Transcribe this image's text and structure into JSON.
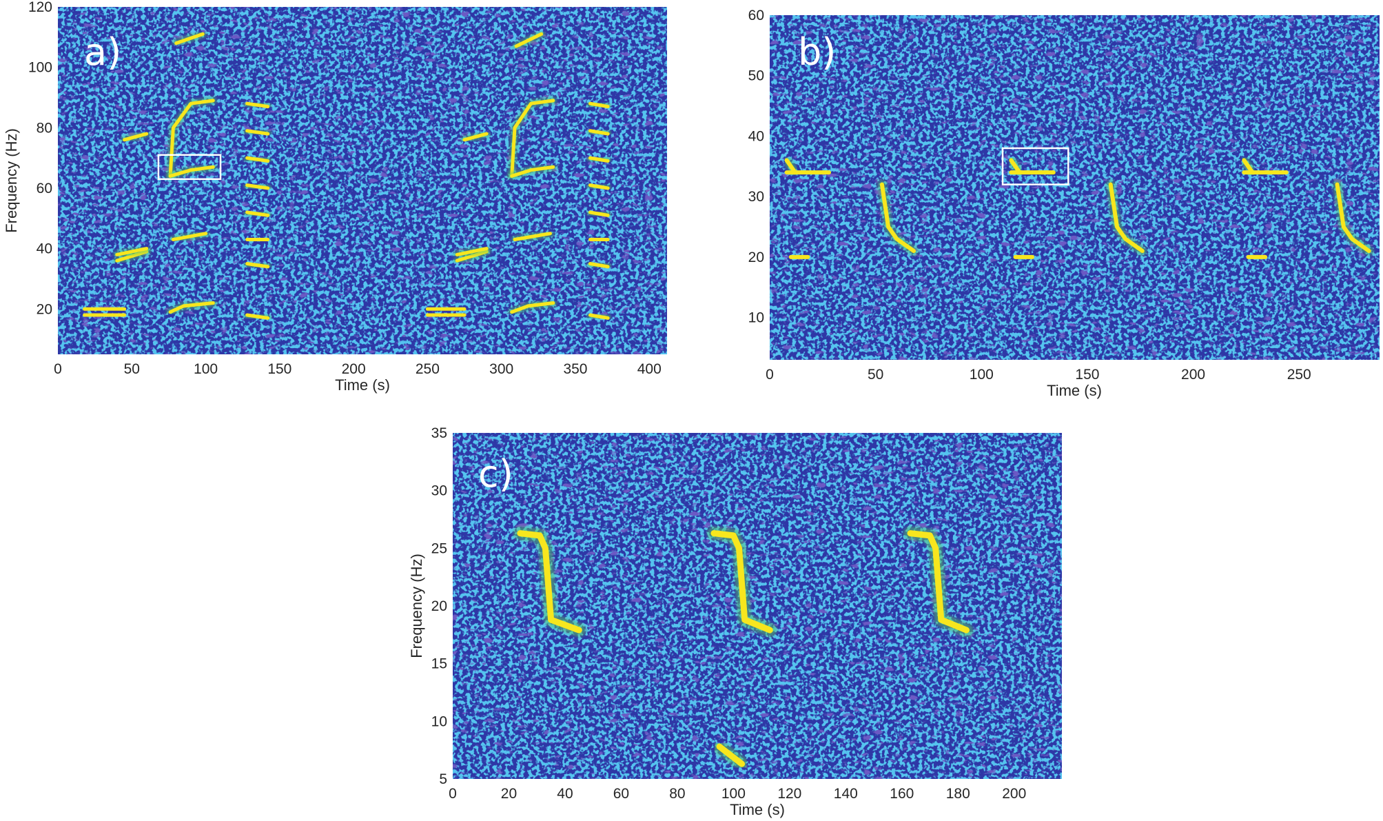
{
  "colors": {
    "background": "#2e37a6",
    "noise_light": "#1fa0d8",
    "noise_mid": "#2f6fd6",
    "noise_dark": "#241a8f",
    "call": "#f7e61e",
    "call_edge": "#56c667",
    "box": "#ffffff"
  },
  "chart_data": [
    {
      "type": "heatmap",
      "panel": "a)",
      "xlabel": "Time (s)",
      "ylabel": "Frequency (Hz)",
      "xlim": [
        0,
        412
      ],
      "ylim": [
        5,
        120
      ],
      "xticks": [
        0,
        50,
        100,
        150,
        200,
        250,
        300,
        350,
        400
      ],
      "yticks": [
        20,
        40,
        60,
        80,
        100,
        120
      ],
      "legend": "none",
      "highlight_box": {
        "x": [
          68,
          110
        ],
        "y": [
          63,
          71
        ]
      },
      "calls": [
        {
          "t": [
            18,
            45
          ],
          "f": [
            18,
            18
          ]
        },
        {
          "t": [
            18,
            45
          ],
          "f": [
            20,
            20
          ]
        },
        {
          "t": [
            40,
            60
          ],
          "f": [
            36,
            39
          ]
        },
        {
          "t": [
            40,
            60
          ],
          "f": [
            38,
            40
          ]
        },
        {
          "t": [
            45,
            60
          ],
          "f": [
            76,
            78
          ]
        },
        {
          "t": [
            76,
            78,
            90,
            105
          ],
          "f": [
            64,
            80,
            88,
            89
          ]
        },
        {
          "t": [
            76,
            90,
            105
          ],
          "f": [
            64,
            66,
            67
          ]
        },
        {
          "t": [
            78,
            100
          ],
          "f": [
            43,
            45
          ]
        },
        {
          "t": [
            76,
            85,
            105
          ],
          "f": [
            19,
            21,
            22
          ]
        },
        {
          "t": [
            80,
            98
          ],
          "f": [
            108,
            111
          ]
        },
        {
          "t": [
            128,
            142
          ],
          "f": [
            88,
            87
          ]
        },
        {
          "t": [
            128,
            142
          ],
          "f": [
            79,
            78
          ]
        },
        {
          "t": [
            128,
            142
          ],
          "f": [
            70,
            69
          ]
        },
        {
          "t": [
            128,
            142
          ],
          "f": [
            61,
            60
          ]
        },
        {
          "t": [
            128,
            142
          ],
          "f": [
            52,
            51
          ]
        },
        {
          "t": [
            128,
            142
          ],
          "f": [
            43,
            43
          ]
        },
        {
          "t": [
            128,
            142
          ],
          "f": [
            35,
            34
          ]
        },
        {
          "t": [
            128,
            142
          ],
          "f": [
            18,
            17
          ]
        },
        {
          "t": [
            250,
            275
          ],
          "f": [
            18,
            18
          ]
        },
        {
          "t": [
            250,
            275
          ],
          "f": [
            20,
            20
          ]
        },
        {
          "t": [
            270,
            290
          ],
          "f": [
            36,
            39
          ]
        },
        {
          "t": [
            270,
            290
          ],
          "f": [
            38,
            40
          ]
        },
        {
          "t": [
            275,
            290
          ],
          "f": [
            76,
            78
          ]
        },
        {
          "t": [
            307,
            309,
            320,
            335
          ],
          "f": [
            64,
            80,
            88,
            89
          ]
        },
        {
          "t": [
            307,
            320,
            335
          ],
          "f": [
            64,
            66,
            67
          ]
        },
        {
          "t": [
            309,
            333
          ],
          "f": [
            43,
            45
          ]
        },
        {
          "t": [
            307,
            318,
            335
          ],
          "f": [
            19,
            21,
            22
          ]
        },
        {
          "t": [
            310,
            327
          ],
          "f": [
            107,
            111
          ]
        },
        {
          "t": [
            360,
            372
          ],
          "f": [
            88,
            87
          ]
        },
        {
          "t": [
            360,
            372
          ],
          "f": [
            79,
            78
          ]
        },
        {
          "t": [
            360,
            372
          ],
          "f": [
            70,
            69
          ]
        },
        {
          "t": [
            360,
            372
          ],
          "f": [
            61,
            60
          ]
        },
        {
          "t": [
            360,
            372
          ],
          "f": [
            52,
            51
          ]
        },
        {
          "t": [
            360,
            372
          ],
          "f": [
            43,
            43
          ]
        },
        {
          "t": [
            360,
            372
          ],
          "f": [
            35,
            34
          ]
        },
        {
          "t": [
            360,
            372
          ],
          "f": [
            18,
            17
          ]
        }
      ]
    },
    {
      "type": "heatmap",
      "panel": "b)",
      "xlabel": "Time (s)",
      "ylabel": "",
      "xlim": [
        0,
        288
      ],
      "ylim": [
        3,
        60
      ],
      "xticks": [
        0,
        50,
        100,
        150,
        200,
        250
      ],
      "yticks": [
        10,
        20,
        30,
        40,
        50,
        60
      ],
      "legend": "none",
      "highlight_box": {
        "x": [
          110,
          141
        ],
        "y": [
          32,
          38
        ]
      },
      "calls": [
        {
          "t": [
            8,
            12
          ],
          "f": [
            36,
            34
          ]
        },
        {
          "t": [
            8,
            18,
            28
          ],
          "f": [
            34,
            34,
            34
          ]
        },
        {
          "t": [
            10,
            18
          ],
          "f": [
            20,
            20
          ]
        },
        {
          "t": [
            53,
            56,
            60,
            68
          ],
          "f": [
            32,
            25,
            23,
            21
          ]
        },
        {
          "t": [
            114,
            118
          ],
          "f": [
            36,
            34
          ]
        },
        {
          "t": [
            114,
            124,
            134
          ],
          "f": [
            34,
            34,
            34
          ]
        },
        {
          "t": [
            116,
            124
          ],
          "f": [
            20,
            20
          ]
        },
        {
          "t": [
            161,
            164,
            168,
            176
          ],
          "f": [
            32,
            25,
            23,
            21
          ]
        },
        {
          "t": [
            224,
            228
          ],
          "f": [
            36,
            34
          ]
        },
        {
          "t": [
            224,
            234,
            244
          ],
          "f": [
            34,
            34,
            34
          ]
        },
        {
          "t": [
            226,
            234
          ],
          "f": [
            20,
            20
          ]
        },
        {
          "t": [
            268,
            271,
            275,
            283
          ],
          "f": [
            32,
            25,
            23,
            21
          ]
        }
      ]
    },
    {
      "type": "heatmap",
      "panel": "c)",
      "xlabel": "Time (s)",
      "ylabel": "Frequency (Hz)",
      "xlim": [
        0,
        217
      ],
      "ylim": [
        5,
        35
      ],
      "xticks": [
        0,
        20,
        40,
        60,
        80,
        100,
        120,
        140,
        160,
        180,
        200
      ],
      "yticks": [
        5,
        10,
        15,
        20,
        25,
        30,
        35
      ],
      "legend": "none",
      "calls": [
        {
          "t": [
            24,
            31,
            33,
            35,
            45
          ],
          "f": [
            26.3,
            26.1,
            25,
            18.8,
            17.9
          ]
        },
        {
          "t": [
            93,
            100,
            102,
            104,
            113
          ],
          "f": [
            26.3,
            26.1,
            25,
            18.8,
            17.9
          ]
        },
        {
          "t": [
            163,
            170,
            172,
            174,
            183
          ],
          "f": [
            26.3,
            26.1,
            25,
            18.8,
            17.9
          ]
        },
        {
          "t": [
            95,
            103
          ],
          "f": [
            7.8,
            6.3
          ]
        }
      ]
    }
  ]
}
